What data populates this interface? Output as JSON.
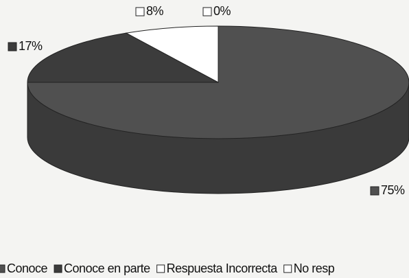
{
  "chart_data": {
    "type": "pie",
    "categories": [
      "Conoce",
      "Conoce en parte",
      "Respuesta Incorrecta",
      "No resp"
    ],
    "values": [
      75,
      17,
      8,
      0
    ],
    "value_labels": [
      "75%",
      "17%",
      "8%",
      "0%"
    ],
    "colors": [
      "#505050",
      "#3c3c3c",
      "#ffffff",
      "#ffffff"
    ],
    "legend": "bottom"
  }
}
